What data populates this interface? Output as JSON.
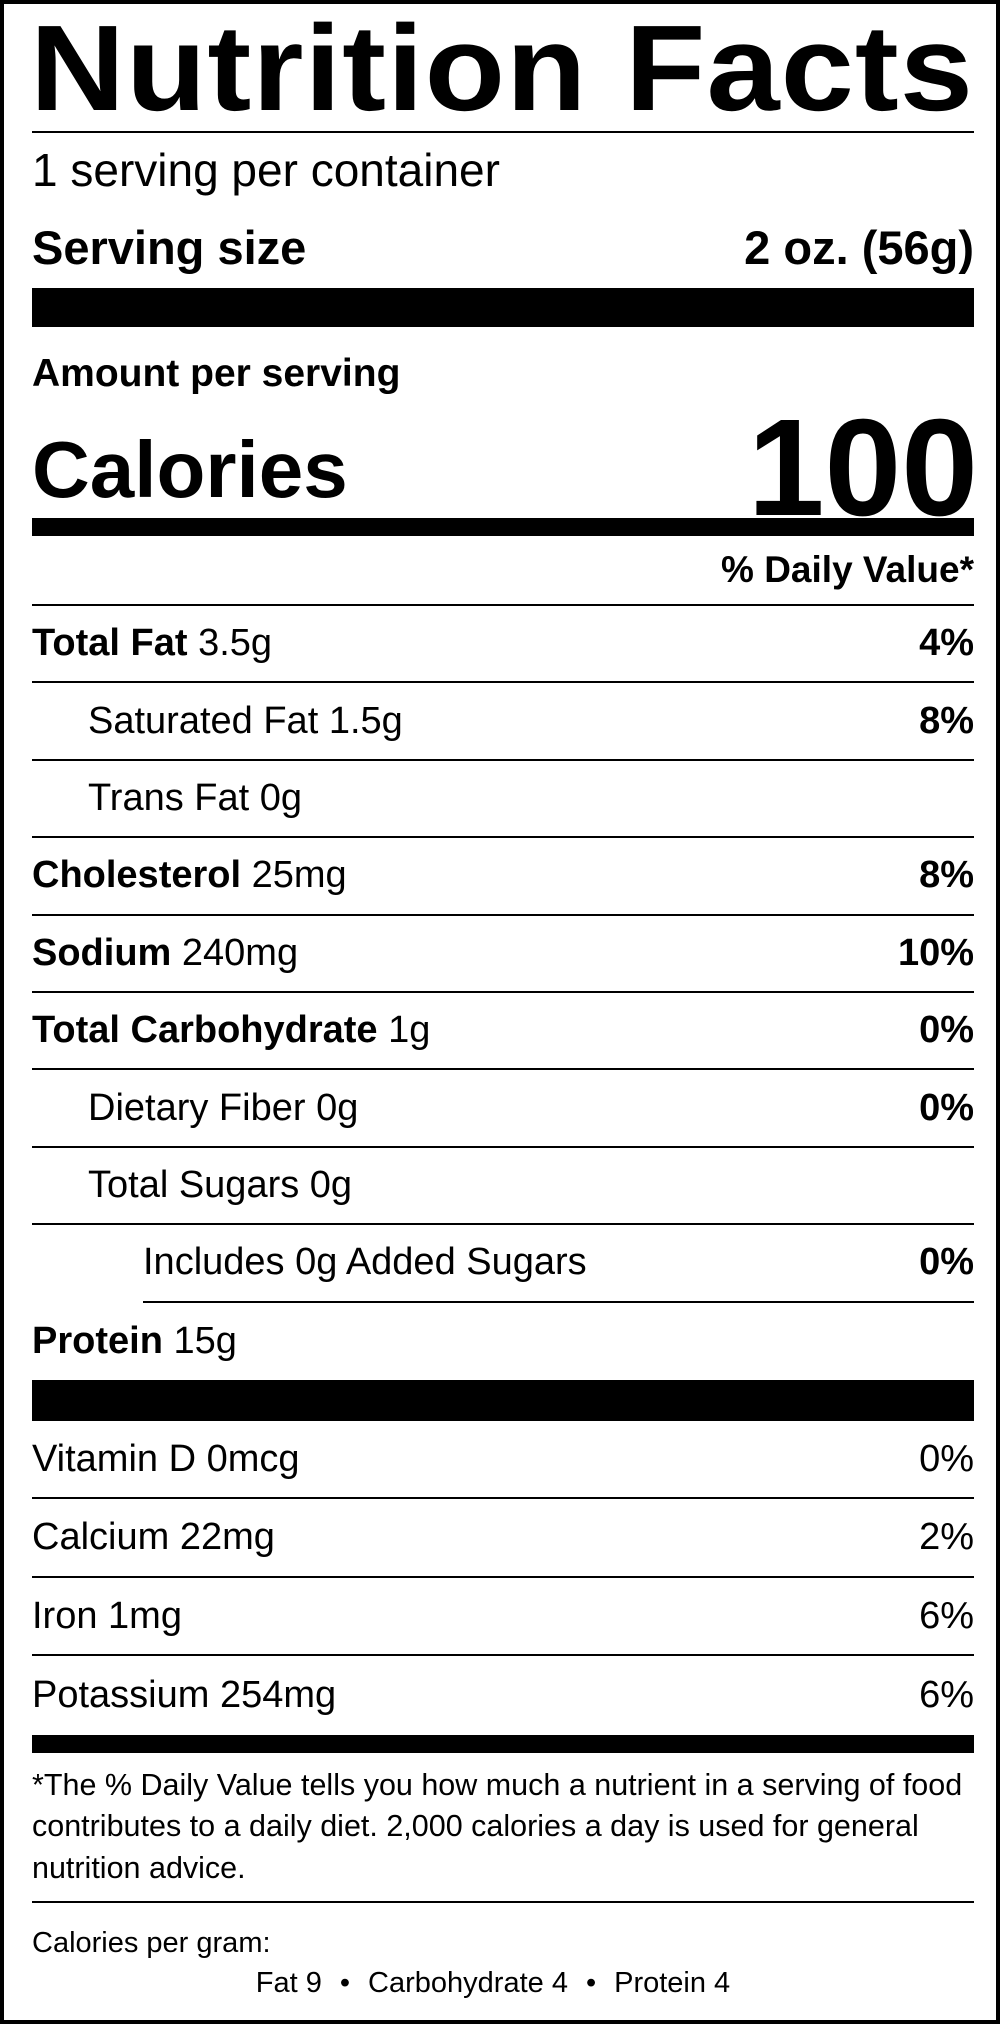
{
  "title": "Nutrition Facts",
  "servings_per_container": "1 serving per container",
  "serving_size": {
    "label": "Serving size",
    "value": "2 oz. (56g)"
  },
  "amount_per_serving": "Amount per serving",
  "calories": {
    "label": "Calories",
    "value": "100"
  },
  "daily_value_header": "% Daily Value*",
  "nutrients": [
    {
      "name": "Total Fat",
      "amount": "3.5g",
      "dv": "4%"
    },
    {
      "name": "Saturated Fat",
      "amount": "1.5g",
      "dv": "8%"
    },
    {
      "name": "Trans Fat",
      "amount": "0g",
      "dv": ""
    },
    {
      "name": "Cholesterol",
      "amount": "25mg",
      "dv": "8%"
    },
    {
      "name": "Sodium",
      "amount": "240mg",
      "dv": "10%"
    },
    {
      "name": "Total Carbohydrate",
      "amount": "1g",
      "dv": "0%"
    },
    {
      "name": "Dietary Fiber",
      "amount": "0g",
      "dv": "0%"
    },
    {
      "name": "Total Sugars",
      "amount": "0g",
      "dv": ""
    },
    {
      "name": "Includes 0g Added Sugars",
      "amount": "",
      "dv": "0%"
    },
    {
      "name": "Protein",
      "amount": "15g",
      "dv": ""
    }
  ],
  "vitamins": [
    {
      "name": "Vitamin D",
      "amount": "0mcg",
      "dv": "0%"
    },
    {
      "name": "Calcium",
      "amount": "22mg",
      "dv": "2%"
    },
    {
      "name": "Iron",
      "amount": "1mg",
      "dv": "6%"
    },
    {
      "name": "Potassium",
      "amount": "254mg",
      "dv": "6%"
    }
  ],
  "footnote": "*The % Daily Value tells you how much a nutrient in a serving of food contributes to a daily diet. 2,000 calories a day is used for general nutrition advice.",
  "calories_per_gram": {
    "label": "Calories per gram:",
    "fat": "Fat 9",
    "carbohydrate": "Carbohydrate 4",
    "protein": "Protein 4",
    "separator": "•"
  }
}
